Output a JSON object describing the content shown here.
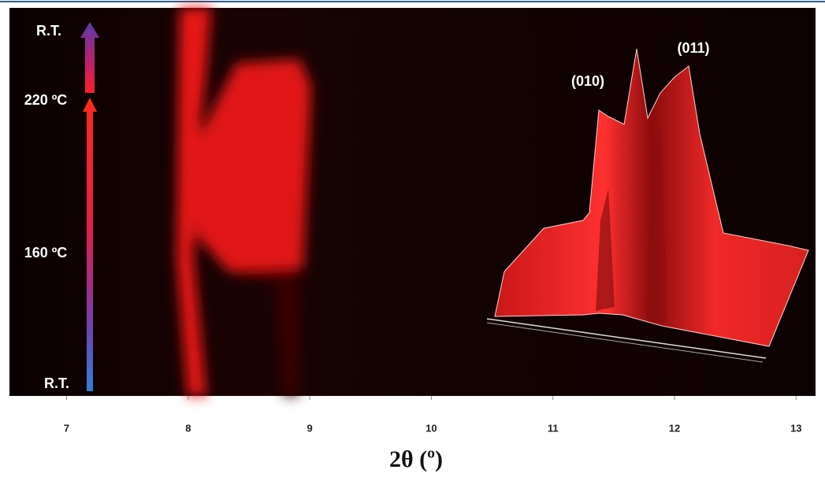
{
  "chart_data": {
    "type": "heatmap",
    "x_label": "2θ (º)",
    "xlim": [
      6.53,
      13.16
    ],
    "xticks": [
      7,
      8,
      9,
      10,
      11,
      12,
      13
    ],
    "temperature_labels": [
      "R.T.",
      "220 ºC",
      "160 ºC",
      "R.T."
    ],
    "peak_labels": [
      "(010)",
      "(011)"
    ]
  }
}
